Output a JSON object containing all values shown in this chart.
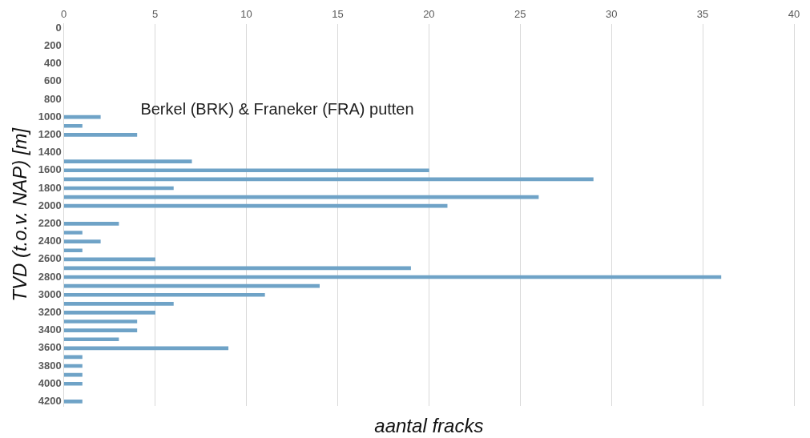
{
  "chart_data": {
    "type": "bar",
    "orientation": "horizontal",
    "xlabel": "aantal fracks",
    "ylabel": "TVD (t.o.v. NAP) [m]",
    "annotations": [
      "Berkel (BRK) & Franeker (FRA) putten"
    ],
    "categories": [
      "0",
      null,
      "200",
      null,
      "400",
      null,
      "600",
      null,
      "800",
      null,
      "1000",
      null,
      "1200",
      null,
      "1400",
      null,
      "1600",
      null,
      "1800",
      null,
      "2000",
      null,
      "2200",
      null,
      "2400",
      null,
      "2600",
      null,
      "2800",
      null,
      "3000",
      null,
      "3200",
      null,
      "3400",
      null,
      "3600",
      null,
      "3800",
      null,
      "4000",
      null,
      "4200"
    ],
    "values": [
      null,
      null,
      null,
      null,
      null,
      null,
      null,
      null,
      null,
      null,
      2,
      1,
      4,
      null,
      null,
      7,
      20,
      29,
      6,
      26,
      21,
      null,
      3,
      1,
      2,
      1,
      5,
      19,
      36,
      14,
      11,
      6,
      5,
      4,
      4,
      3,
      9,
      1,
      1,
      1,
      1,
      null,
      1
    ],
    "color": "#6fa3c7",
    "xlim": [
      0,
      40
    ],
    "xticks": [
      0,
      5,
      10,
      15,
      20,
      25,
      30,
      35,
      40
    ],
    "grid": "x",
    "legend": false
  }
}
